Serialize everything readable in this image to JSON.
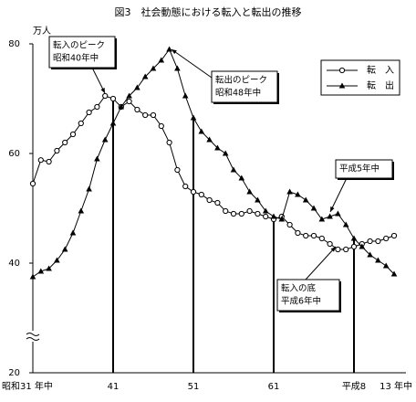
{
  "chart_data": {
    "type": "line",
    "title": "図3　社会動態における転入と転出の推移",
    "y_unit": "万人",
    "categories": [
      "昭和31 年中",
      null,
      null,
      null,
      null,
      null,
      null,
      null,
      null,
      null,
      "41",
      null,
      null,
      null,
      null,
      null,
      null,
      null,
      null,
      null,
      "51",
      null,
      null,
      null,
      null,
      null,
      null,
      null,
      null,
      null,
      "61",
      null,
      null,
      null,
      null,
      null,
      null,
      null,
      null,
      null,
      "平成8",
      null,
      null,
      null,
      null,
      "13 年中"
    ],
    "series": [
      {
        "name": "転　入",
        "color": "#000000",
        "marker": "circle",
        "values": [
          54.5,
          58.8,
          58.5,
          60.5,
          62,
          63.5,
          65.5,
          67.5,
          68.5,
          70.5,
          70,
          68.5,
          69.5,
          68,
          67,
          67,
          65,
          62,
          57,
          54,
          53,
          52.5,
          51.5,
          51,
          49.5,
          49,
          49,
          49.5,
          49,
          48.5,
          48,
          48.5,
          47,
          45.5,
          45,
          45,
          44.5,
          43.5,
          42.5,
          42.5,
          43,
          43.5,
          44,
          44,
          44.5,
          45
        ]
      },
      {
        "name": "転　出",
        "color": "#000000",
        "marker": "triangle",
        "values": [
          37.5,
          38.5,
          39,
          40.5,
          42.5,
          45.5,
          49.5,
          53.5,
          59,
          62.5,
          65.5,
          68.5,
          70.5,
          72,
          74,
          75.5,
          77,
          79,
          75.5,
          70.5,
          66.5,
          64,
          62.5,
          61,
          60,
          57,
          55.5,
          53,
          51.5,
          49.5,
          48.5,
          48,
          53,
          52.5,
          51.5,
          50,
          48,
          48.5,
          49,
          47,
          44.5,
          43,
          41.5,
          40.5,
          39.5,
          38
        ]
      }
    ],
    "annotations": [
      {
        "lines": [
          "転入のピーク",
          "昭和40年中"
        ]
      },
      {
        "lines": [
          "転出のピーク",
          "昭和48年中"
        ]
      },
      {
        "lines": [
          "平成5年中"
        ]
      },
      {
        "lines": [
          "転入の底",
          "平成6年中"
        ]
      }
    ],
    "ylim": [
      20,
      80
    ],
    "yticks": [
      20,
      40,
      60,
      80
    ],
    "legend": "upper right"
  }
}
